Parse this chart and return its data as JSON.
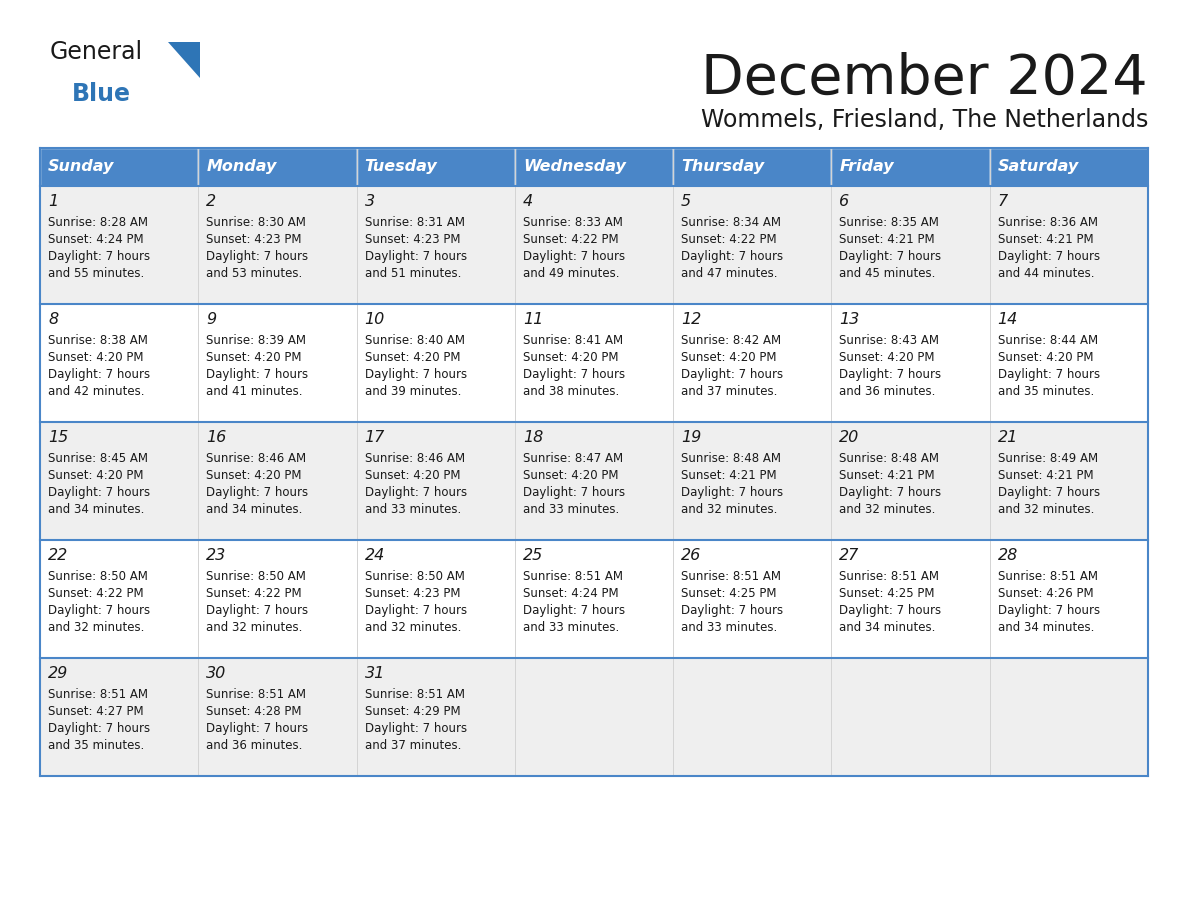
{
  "title": "December 2024",
  "subtitle": "Wommels, Friesland, The Netherlands",
  "header_color": "#4A86C8",
  "header_text_color": "#FFFFFF",
  "cell_bg_even": "#EFEFEF",
  "cell_bg_odd": "#FFFFFF",
  "border_color": "#4A86C8",
  "text_color": "#1A1A1A",
  "days_of_week": [
    "Sunday",
    "Monday",
    "Tuesday",
    "Wednesday",
    "Thursday",
    "Friday",
    "Saturday"
  ],
  "calendar_data": [
    [
      {
        "day": 1,
        "sunrise": "8:28 AM",
        "sunset": "4:24 PM",
        "daylight": "7 hours and 55 minutes."
      },
      {
        "day": 2,
        "sunrise": "8:30 AM",
        "sunset": "4:23 PM",
        "daylight": "7 hours and 53 minutes."
      },
      {
        "day": 3,
        "sunrise": "8:31 AM",
        "sunset": "4:23 PM",
        "daylight": "7 hours and 51 minutes."
      },
      {
        "day": 4,
        "sunrise": "8:33 AM",
        "sunset": "4:22 PM",
        "daylight": "7 hours and 49 minutes."
      },
      {
        "day": 5,
        "sunrise": "8:34 AM",
        "sunset": "4:22 PM",
        "daylight": "7 hours and 47 minutes."
      },
      {
        "day": 6,
        "sunrise": "8:35 AM",
        "sunset": "4:21 PM",
        "daylight": "7 hours and 45 minutes."
      },
      {
        "day": 7,
        "sunrise": "8:36 AM",
        "sunset": "4:21 PM",
        "daylight": "7 hours and 44 minutes."
      }
    ],
    [
      {
        "day": 8,
        "sunrise": "8:38 AM",
        "sunset": "4:20 PM",
        "daylight": "7 hours and 42 minutes."
      },
      {
        "day": 9,
        "sunrise": "8:39 AM",
        "sunset": "4:20 PM",
        "daylight": "7 hours and 41 minutes."
      },
      {
        "day": 10,
        "sunrise": "8:40 AM",
        "sunset": "4:20 PM",
        "daylight": "7 hours and 39 minutes."
      },
      {
        "day": 11,
        "sunrise": "8:41 AM",
        "sunset": "4:20 PM",
        "daylight": "7 hours and 38 minutes."
      },
      {
        "day": 12,
        "sunrise": "8:42 AM",
        "sunset": "4:20 PM",
        "daylight": "7 hours and 37 minutes."
      },
      {
        "day": 13,
        "sunrise": "8:43 AM",
        "sunset": "4:20 PM",
        "daylight": "7 hours and 36 minutes."
      },
      {
        "day": 14,
        "sunrise": "8:44 AM",
        "sunset": "4:20 PM",
        "daylight": "7 hours and 35 minutes."
      }
    ],
    [
      {
        "day": 15,
        "sunrise": "8:45 AM",
        "sunset": "4:20 PM",
        "daylight": "7 hours and 34 minutes."
      },
      {
        "day": 16,
        "sunrise": "8:46 AM",
        "sunset": "4:20 PM",
        "daylight": "7 hours and 34 minutes."
      },
      {
        "day": 17,
        "sunrise": "8:46 AM",
        "sunset": "4:20 PM",
        "daylight": "7 hours and 33 minutes."
      },
      {
        "day": 18,
        "sunrise": "8:47 AM",
        "sunset": "4:20 PM",
        "daylight": "7 hours and 33 minutes."
      },
      {
        "day": 19,
        "sunrise": "8:48 AM",
        "sunset": "4:21 PM",
        "daylight": "7 hours and 32 minutes."
      },
      {
        "day": 20,
        "sunrise": "8:48 AM",
        "sunset": "4:21 PM",
        "daylight": "7 hours and 32 minutes."
      },
      {
        "day": 21,
        "sunrise": "8:49 AM",
        "sunset": "4:21 PM",
        "daylight": "7 hours and 32 minutes."
      }
    ],
    [
      {
        "day": 22,
        "sunrise": "8:50 AM",
        "sunset": "4:22 PM",
        "daylight": "7 hours and 32 minutes."
      },
      {
        "day": 23,
        "sunrise": "8:50 AM",
        "sunset": "4:22 PM",
        "daylight": "7 hours and 32 minutes."
      },
      {
        "day": 24,
        "sunrise": "8:50 AM",
        "sunset": "4:23 PM",
        "daylight": "7 hours and 32 minutes."
      },
      {
        "day": 25,
        "sunrise": "8:51 AM",
        "sunset": "4:24 PM",
        "daylight": "7 hours and 33 minutes."
      },
      {
        "day": 26,
        "sunrise": "8:51 AM",
        "sunset": "4:25 PM",
        "daylight": "7 hours and 33 minutes."
      },
      {
        "day": 27,
        "sunrise": "8:51 AM",
        "sunset": "4:25 PM",
        "daylight": "7 hours and 34 minutes."
      },
      {
        "day": 28,
        "sunrise": "8:51 AM",
        "sunset": "4:26 PM",
        "daylight": "7 hours and 34 minutes."
      }
    ],
    [
      {
        "day": 29,
        "sunrise": "8:51 AM",
        "sunset": "4:27 PM",
        "daylight": "7 hours and 35 minutes."
      },
      {
        "day": 30,
        "sunrise": "8:51 AM",
        "sunset": "4:28 PM",
        "daylight": "7 hours and 36 minutes."
      },
      {
        "day": 31,
        "sunrise": "8:51 AM",
        "sunset": "4:29 PM",
        "daylight": "7 hours and 37 minutes."
      },
      null,
      null,
      null,
      null
    ]
  ],
  "logo_text_general": "General",
  "logo_text_blue": "Blue",
  "logo_blue_color": "#2E75B6",
  "logo_text_color": "#1A1A1A"
}
